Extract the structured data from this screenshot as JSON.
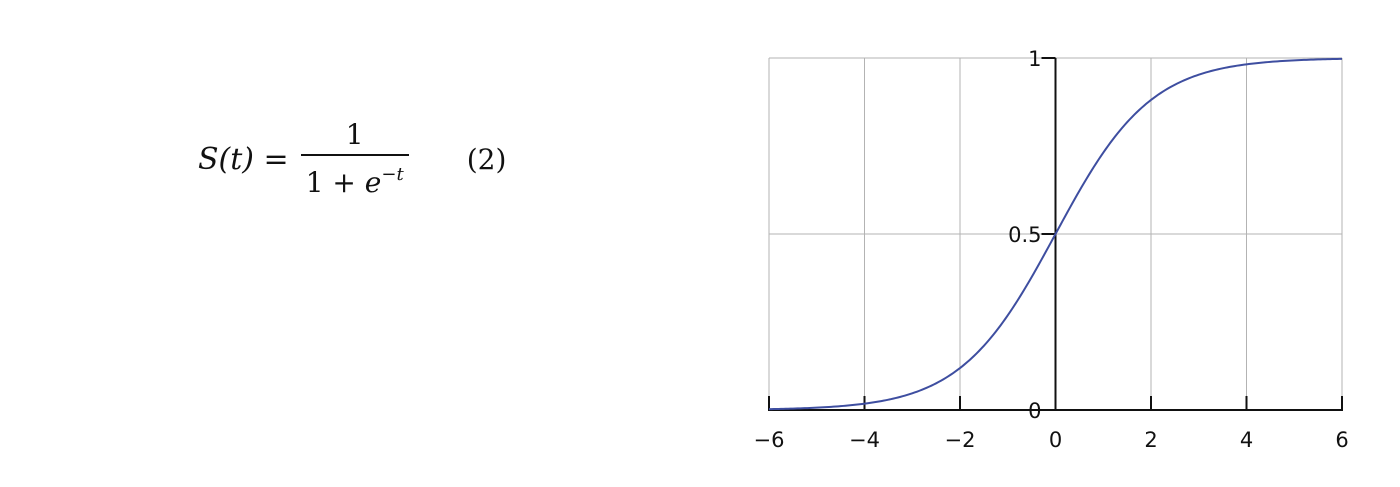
{
  "formula": {
    "lhs": "S(t) =",
    "numerator": "1",
    "denominator_base": "1 + ",
    "denominator_e": "e",
    "denominator_exp": "−t",
    "equation_number": "(2)"
  },
  "chart_data": {
    "type": "line",
    "function": "logistic sigmoid",
    "xlim": [
      -6,
      6
    ],
    "ylim": [
      0,
      1
    ],
    "x_ticks": [
      -6,
      -4,
      -2,
      0,
      2,
      4,
      6
    ],
    "x_tick_labels": [
      "−6",
      "−4",
      "−2",
      "0",
      "2",
      "4",
      "6"
    ],
    "y_ticks": [
      0,
      0.5,
      1
    ],
    "y_tick_labels": [
      "0",
      "0.5",
      "1"
    ],
    "grid": true,
    "series": [
      {
        "color": "#3e4ea0",
        "x": [
          -6,
          -5,
          -4,
          -3,
          -2,
          -1,
          0,
          1,
          2,
          3,
          4,
          5,
          6
        ],
        "y": [
          0.0025,
          0.0067,
          0.018,
          0.047,
          0.119,
          0.269,
          0.5,
          0.731,
          0.881,
          0.953,
          0.982,
          0.9933,
          0.9975
        ]
      }
    ],
    "colors": {
      "curve": "#3e4ea0",
      "grid": "#b3b3b3",
      "axis": "#111111"
    }
  }
}
